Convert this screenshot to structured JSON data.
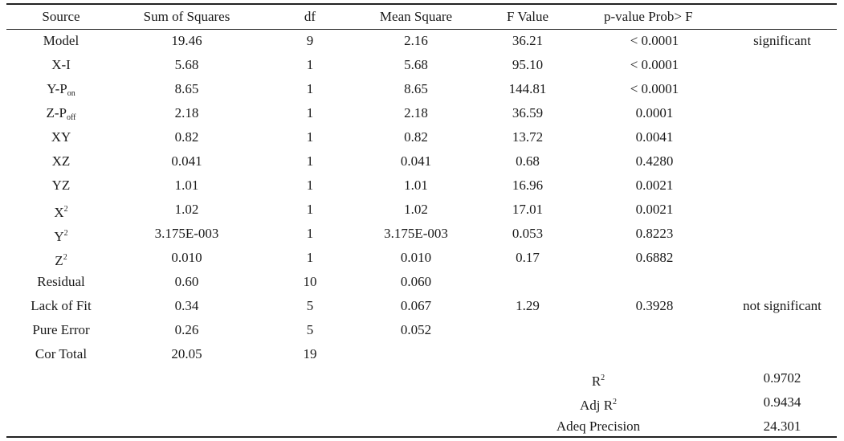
{
  "table": {
    "headers": {
      "source": "Source",
      "sum_of_squares": "Sum of Squares",
      "df": "df",
      "mean_square": "Mean Square",
      "f_value": "F Value",
      "p_value": "p-value Prob> F"
    },
    "rows": [
      {
        "source": "Model",
        "source_sub": "",
        "source_sup": "",
        "ss": "19.46",
        "df": "9",
        "ms": "2.16",
        "f": "36.21",
        "p": "< 0.0001",
        "note": "significant"
      },
      {
        "source": "X-I",
        "source_sub": "",
        "source_sup": "",
        "ss": "5.68",
        "df": "1",
        "ms": "5.68",
        "f": "95.10",
        "p": "< 0.0001",
        "note": ""
      },
      {
        "source": "Y-P",
        "source_sub": "on",
        "source_sup": "",
        "ss": "8.65",
        "df": "1",
        "ms": "8.65",
        "f": "144.81",
        "p": "< 0.0001",
        "note": ""
      },
      {
        "source": "Z-P",
        "source_sub": "off",
        "source_sup": "",
        "ss": "2.18",
        "df": "1",
        "ms": "2.18",
        "f": "36.59",
        "p": "0.0001",
        "note": ""
      },
      {
        "source": "XY",
        "source_sub": "",
        "source_sup": "",
        "ss": "0.82",
        "df": "1",
        "ms": "0.82",
        "f": "13.72",
        "p": "0.0041",
        "note": ""
      },
      {
        "source": "XZ",
        "source_sub": "",
        "source_sup": "",
        "ss": "0.041",
        "df": "1",
        "ms": "0.041",
        "f": "0.68",
        "p": "0.4280",
        "note": ""
      },
      {
        "source": "YZ",
        "source_sub": "",
        "source_sup": "",
        "ss": "1.01",
        "df": "1",
        "ms": "1.01",
        "f": "16.96",
        "p": "0.0021",
        "note": ""
      },
      {
        "source": "X",
        "source_sub": "",
        "source_sup": "2",
        "ss": "1.02",
        "df": "1",
        "ms": "1.02",
        "f": "17.01",
        "p": "0.0021",
        "note": ""
      },
      {
        "source": "Y",
        "source_sub": "",
        "source_sup": "2",
        "ss": "3.175E-003",
        "df": "1",
        "ms": "3.175E-003",
        "f": "0.053",
        "p": "0.8223",
        "note": ""
      },
      {
        "source": "Z",
        "source_sub": "",
        "source_sup": "2",
        "ss": "0.010",
        "df": "1",
        "ms": "0.010",
        "f": "0.17",
        "p": "0.6882",
        "note": ""
      },
      {
        "source": "Residual",
        "source_sub": "",
        "source_sup": "",
        "ss": "0.60",
        "df": "10",
        "ms": "0.060",
        "f": "",
        "p": "",
        "note": ""
      },
      {
        "source": "Lack of Fit",
        "source_sub": "",
        "source_sup": "",
        "ss": "0.34",
        "df": "5",
        "ms": "0.067",
        "f": "1.29",
        "p": "0.3928",
        "note": "not significant"
      },
      {
        "source": "Pure Error",
        "source_sub": "",
        "source_sup": "",
        "ss": "0.26",
        "df": "5",
        "ms": "0.052",
        "f": "",
        "p": "",
        "note": ""
      },
      {
        "source": "Cor Total",
        "source_sub": "",
        "source_sup": "",
        "ss": "20.05",
        "df": "19",
        "ms": "",
        "f": "",
        "p": "",
        "note": ""
      }
    ],
    "stats": [
      {
        "label": "R",
        "label_sup": "2",
        "value": "0.9702"
      },
      {
        "label": "Adj R",
        "label_sup": "2",
        "value": "0.9434"
      },
      {
        "label": "Adeq Precision",
        "label_sup": "",
        "value": "24.301"
      }
    ]
  }
}
